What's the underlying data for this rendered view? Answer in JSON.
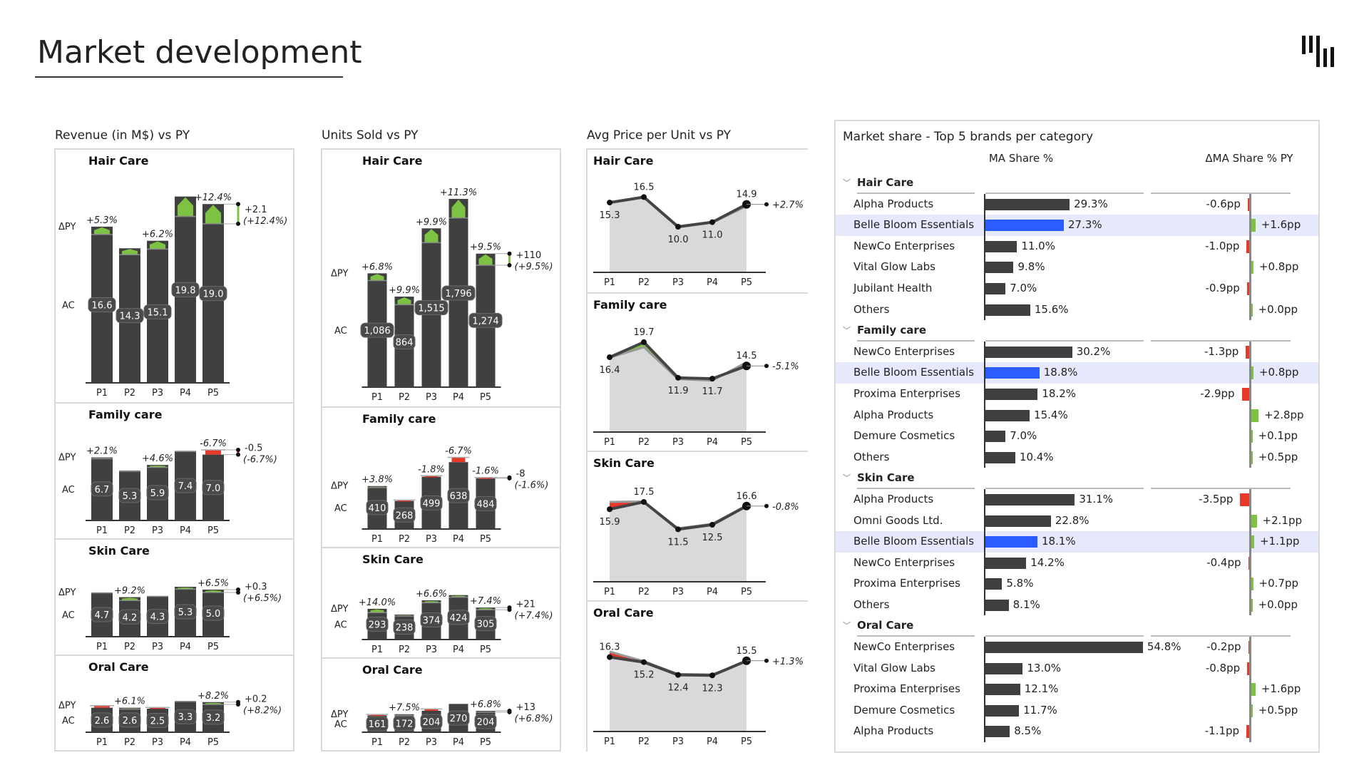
{
  "page_title": "Market development",
  "colors": {
    "bar": "#404040",
    "positive": "#7dc243",
    "negative": "#e8382a",
    "highlight_bar": "#2b5cff",
    "highlight_row": "#e6e9fb",
    "area": "#d9d9d9"
  },
  "logo_icon": "bar-logo-icon",
  "periods": [
    "P1",
    "P2",
    "P3",
    "P4",
    "P5"
  ],
  "row_labels": {
    "delta": "ΔPY",
    "actual": "AC"
  },
  "revenue": {
    "title": "Revenue (in M$) vs PY",
    "categories": [
      {
        "name": "Hair Care",
        "ac": [
          16.6,
          14.3,
          15.1,
          19.8,
          19.0
        ],
        "delta_pct": [
          5.3,
          5.0,
          6.2,
          12.0,
          12.4
        ],
        "delta_labels": [
          "+5.3%",
          null,
          "+6.2%",
          null,
          "+12.4%"
        ],
        "end_abs": "+2.1",
        "end_pct": "(+12.4%)"
      },
      {
        "name": "Family care",
        "ac": [
          6.7,
          5.3,
          5.9,
          7.4,
          7.0
        ],
        "delta_pct": [
          2.1,
          1.5,
          4.6,
          1.0,
          -6.7
        ],
        "delta_labels": [
          "+2.1%",
          null,
          "+4.6%",
          null,
          "-6.7%"
        ],
        "end_abs": "-0.5",
        "end_pct": "(-6.7%)"
      },
      {
        "name": "Skin Care",
        "ac": [
          4.7,
          4.2,
          4.3,
          5.3,
          5.0
        ],
        "delta_pct": [
          1.0,
          9.2,
          0.5,
          5.0,
          6.5
        ],
        "delta_labels": [
          null,
          "+9.2%",
          null,
          null,
          "+6.5%"
        ],
        "end_abs": "+0.3",
        "end_pct": "(+6.5%)"
      },
      {
        "name": "Oral Care",
        "ac": [
          2.6,
          2.6,
          2.5,
          3.3,
          3.2
        ],
        "delta_pct": [
          -8.0,
          6.1,
          -5.0,
          1.0,
          8.2
        ],
        "delta_labels": [
          null,
          "+6.1%",
          null,
          null,
          "+8.2%"
        ],
        "end_abs": "+0.2",
        "end_pct": "(+8.2%)"
      }
    ]
  },
  "units": {
    "title": "Units Sold vs PY",
    "categories": [
      {
        "name": "Hair Care",
        "ac": [
          1086,
          864,
          1515,
          1796,
          1274
        ],
        "ac_labels": [
          "1,086",
          "864",
          "1,515",
          "1,796",
          "1,274"
        ],
        "delta_pct": [
          6.8,
          9.9,
          9.9,
          11.3,
          9.5
        ],
        "delta_labels": [
          "+6.8%",
          "+9.9%",
          "+9.9%",
          "+11.3%",
          "+9.5%"
        ],
        "end_abs": "+110",
        "end_pct": "(+9.5%)"
      },
      {
        "name": "Family care",
        "ac": [
          410,
          268,
          499,
          638,
          484
        ],
        "ac_labels": [
          "410",
          "268",
          "499",
          "638",
          "484"
        ],
        "delta_pct": [
          3.8,
          -3.0,
          -1.8,
          -6.7,
          -1.6
        ],
        "delta_labels": [
          "+3.8%",
          null,
          "-1.8%",
          "-6.7%",
          "-1.6%"
        ],
        "end_abs": "-8",
        "end_pct": "(-1.6%)"
      },
      {
        "name": "Skin Care",
        "ac": [
          293,
          238,
          374,
          424,
          305
        ],
        "ac_labels": [
          "293",
          "238",
          "374",
          "424",
          "305"
        ],
        "delta_pct": [
          14.0,
          6.0,
          6.6,
          5.0,
          7.4
        ],
        "delta_labels": [
          "+14.0%",
          null,
          "+6.6%",
          null,
          "+7.4%"
        ],
        "end_abs": "+21",
        "end_pct": "(+7.4%)"
      },
      {
        "name": "Oral Care",
        "ac": [
          161,
          172,
          204,
          270,
          204
        ],
        "ac_labels": [
          "161",
          "172",
          "204",
          "270",
          "204"
        ],
        "delta_pct": [
          -5.0,
          7.5,
          -8.0,
          0.0,
          6.8
        ],
        "delta_labels": [
          null,
          "+7.5%",
          null,
          null,
          "+6.8%"
        ],
        "end_abs": "+13",
        "end_pct": "(+6.8%)"
      }
    ]
  },
  "price": {
    "title": "Avg Price per Unit vs PY",
    "categories": [
      {
        "name": "Hair Care",
        "ac": [
          15.3,
          16.5,
          10.0,
          11.0,
          14.9
        ],
        "ac_labels": [
          "15.3",
          "16.5",
          "10.0",
          "11.0",
          "14.9"
        ],
        "py": [
          15.2,
          16.4,
          9.9,
          10.9,
          14.5
        ],
        "end_pct": "+2.7%"
      },
      {
        "name": "Family care",
        "ac": [
          16.4,
          19.7,
          11.9,
          11.7,
          14.5
        ],
        "ac_labels": [
          "16.4",
          "19.7",
          "11.9",
          "11.7",
          "14.5"
        ],
        "py": [
          16.3,
          18.6,
          11.6,
          11.3,
          15.3
        ],
        "end_pct": "-5.1%"
      },
      {
        "name": "Skin Care",
        "ac": [
          15.9,
          17.5,
          11.5,
          12.5,
          16.6
        ],
        "ac_labels": [
          "15.9",
          "17.5",
          "11.5",
          "12.5",
          "16.6"
        ],
        "py": [
          17.5,
          17.6,
          11.7,
          12.7,
          16.7
        ],
        "end_pct": "-0.8%"
      },
      {
        "name": "Oral Care",
        "ac": [
          16.3,
          15.2,
          12.4,
          12.3,
          15.5
        ],
        "ac_labels": [
          "16.3",
          "15.2",
          "12.4",
          "12.3",
          "15.5"
        ],
        "py": [
          17.5,
          15.4,
          12.6,
          12.5,
          15.3
        ],
        "end_pct": "+1.3%"
      }
    ]
  },
  "market_share": {
    "title": "Market share - Top 5 brands per category",
    "col_share": "MA Share %",
    "col_delta": "ΔMA Share % PY",
    "categories": [
      {
        "name": "Hair Care",
        "rows": [
          {
            "brand": "Alpha Products",
            "share": 29.3,
            "share_label": "29.3%",
            "delta": -0.6,
            "delta_label": "-0.6pp"
          },
          {
            "brand": "Belle Bloom Essentials",
            "share": 27.3,
            "share_label": "27.3%",
            "delta": 1.6,
            "delta_label": "+1.6pp",
            "highlight": true
          },
          {
            "brand": "NewCo Enterprises",
            "share": 11.0,
            "share_label": "11.0%",
            "delta": -1.0,
            "delta_label": "-1.0pp"
          },
          {
            "brand": "Vital Glow Labs",
            "share": 9.8,
            "share_label": "9.8%",
            "delta": 0.8,
            "delta_label": "+0.8pp"
          },
          {
            "brand": "Jubilant Health",
            "share": 7.0,
            "share_label": "7.0%",
            "delta": -0.9,
            "delta_label": "-0.9pp"
          },
          {
            "brand": "Others",
            "share": 15.6,
            "share_label": "15.6%",
            "delta": 0.0,
            "delta_label": "+0.0pp"
          }
        ]
      },
      {
        "name": "Family care",
        "rows": [
          {
            "brand": "NewCo Enterprises",
            "share": 30.2,
            "share_label": "30.2%",
            "delta": -1.3,
            "delta_label": "-1.3pp"
          },
          {
            "brand": "Belle Bloom Essentials",
            "share": 18.8,
            "share_label": "18.8%",
            "delta": 0.8,
            "delta_label": "+0.8pp",
            "highlight": true
          },
          {
            "brand": "Proxima Enterprises",
            "share": 18.2,
            "share_label": "18.2%",
            "delta": -2.9,
            "delta_label": "-2.9pp"
          },
          {
            "brand": "Alpha Products",
            "share": 15.4,
            "share_label": "15.4%",
            "delta": 2.8,
            "delta_label": "+2.8pp"
          },
          {
            "brand": "Demure Cosmetics",
            "share": 7.0,
            "share_label": "7.0%",
            "delta": 0.1,
            "delta_label": "+0.1pp"
          },
          {
            "brand": "Others",
            "share": 10.4,
            "share_label": "10.4%",
            "delta": 0.5,
            "delta_label": "+0.5pp"
          }
        ]
      },
      {
        "name": "Skin Care",
        "rows": [
          {
            "brand": "Alpha Products",
            "share": 31.1,
            "share_label": "31.1%",
            "delta": -3.5,
            "delta_label": "-3.5pp"
          },
          {
            "brand": "Omni Goods Ltd.",
            "share": 22.8,
            "share_label": "22.8%",
            "delta": 2.1,
            "delta_label": "+2.1pp"
          },
          {
            "brand": "Belle Bloom Essentials",
            "share": 18.1,
            "share_label": "18.1%",
            "delta": 1.1,
            "delta_label": "+1.1pp",
            "highlight": true
          },
          {
            "brand": "NewCo Enterprises",
            "share": 14.2,
            "share_label": "14.2%",
            "delta": -0.4,
            "delta_label": "-0.4pp"
          },
          {
            "brand": "Proxima Enterprises",
            "share": 5.8,
            "share_label": "5.8%",
            "delta": 0.7,
            "delta_label": "+0.7pp"
          },
          {
            "brand": "Others",
            "share": 8.1,
            "share_label": "8.1%",
            "delta": 0.0,
            "delta_label": "+0.0pp"
          }
        ]
      },
      {
        "name": "Oral Care",
        "rows": [
          {
            "brand": "NewCo Enterprises",
            "share": 54.8,
            "share_label": "54.8%",
            "delta": -0.2,
            "delta_label": "-0.2pp"
          },
          {
            "brand": "Vital Glow Labs",
            "share": 13.0,
            "share_label": "13.0%",
            "delta": -0.8,
            "delta_label": "-0.8pp"
          },
          {
            "brand": "Proxima Enterprises",
            "share": 12.1,
            "share_label": "12.1%",
            "delta": 1.6,
            "delta_label": "+1.6pp"
          },
          {
            "brand": "Demure Cosmetics",
            "share": 11.7,
            "share_label": "11.7%",
            "delta": 0.5,
            "delta_label": "+0.5pp"
          },
          {
            "brand": "Alpha Products",
            "share": 8.5,
            "share_label": "8.5%",
            "delta": -1.1,
            "delta_label": "-1.1pp"
          }
        ]
      }
    ]
  }
}
